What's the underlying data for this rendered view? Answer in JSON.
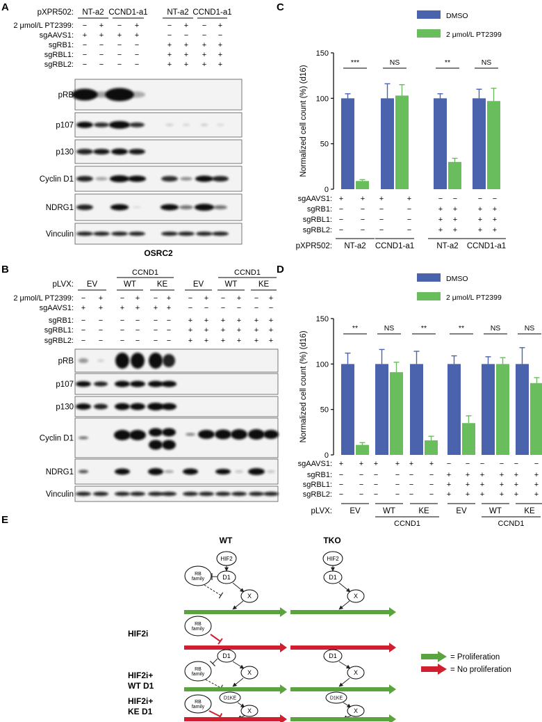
{
  "panels": {
    "A": "A",
    "B": "B",
    "C": "C",
    "D": "D",
    "E": "E"
  },
  "panel_a": {
    "header_label": "pXPR502:",
    "groups": [
      "NT-a2",
      "CCND1-a1",
      "NT-a2",
      "CCND1-a1"
    ],
    "rows": [
      {
        "label": "2 μmol/L PT2399:",
        "signs": [
          "−",
          "+",
          "−",
          "+",
          "−",
          "+",
          "−",
          "+"
        ]
      },
      {
        "label": "sgAAVS1:",
        "signs": [
          "+",
          "+",
          "+",
          "+",
          "−",
          "−",
          "−",
          "−"
        ]
      },
      {
        "label": "sgRB1:",
        "signs": [
          "−",
          "−",
          "−",
          "−",
          "+",
          "+",
          "+",
          "+"
        ]
      },
      {
        "label": "sgRBL1:",
        "signs": [
          "−",
          "−",
          "−",
          "−",
          "+",
          "+",
          "+",
          "+"
        ]
      },
      {
        "label": "sgRBL2:",
        "signs": [
          "−",
          "−",
          "−",
          "−",
          "+",
          "+",
          "+",
          "+"
        ]
      }
    ],
    "blots": [
      "pRB",
      "p107",
      "p130",
      "Cyclin D1",
      "NDRG1",
      "Vinculin"
    ],
    "cell_line": "OSRC2"
  },
  "panel_b": {
    "header_label": "pLVX:",
    "groups": [
      "EV",
      "WT",
      "KE",
      "EV",
      "WT",
      "KE"
    ],
    "super_groups": [
      "CCND1",
      "CCND1"
    ],
    "rows": [
      {
        "label": "2 μmol/L PT2399:",
        "signs": [
          "−",
          "+",
          "−",
          "+",
          "−",
          "+",
          "−",
          "+",
          "−",
          "+",
          "−",
          "+"
        ]
      },
      {
        "label": "sgAAVS1:",
        "signs": [
          "+",
          "+",
          "+",
          "+",
          "+",
          "+",
          "−",
          "−",
          "−",
          "−",
          "−",
          "−"
        ]
      },
      {
        "label": "sgRB1:",
        "signs": [
          "−",
          "−",
          "−",
          "−",
          "−",
          "−",
          "+",
          "+",
          "+",
          "+",
          "+",
          "+"
        ]
      },
      {
        "label": "sgRBL1:",
        "signs": [
          "−",
          "−",
          "−",
          "−",
          "−",
          "−",
          "+",
          "+",
          "+",
          "+",
          "+",
          "+"
        ]
      },
      {
        "label": "sgRBL2:",
        "signs": [
          "−",
          "−",
          "−",
          "−",
          "−",
          "−",
          "+",
          "+",
          "+",
          "+",
          "+",
          "+"
        ]
      }
    ],
    "blots": [
      "pRB",
      "p107",
      "p130",
      "Cyclin D1",
      "NDRG1",
      "Vinculin"
    ]
  },
  "chart_data": [
    {
      "type": "bar",
      "panel": "C",
      "ylabel": "Normalized cell count (%) (d16)",
      "ylim": [
        0,
        150
      ],
      "yticks": [
        0,
        50,
        100,
        150
      ],
      "legend": [
        "DMSO",
        "2 μmol/L PT2399"
      ],
      "colors": {
        "DMSO": "#4b63ad",
        "PT2399": "#69bd5c"
      },
      "groups": [
        "NT-a2",
        "CCND1-a1",
        "NT-a2",
        "CCND1-a1"
      ],
      "series": [
        {
          "name": "DMSO",
          "values": [
            100,
            100,
            100,
            100
          ],
          "errors": [
            5,
            16,
            5,
            10
          ]
        },
        {
          "name": "2 μmol/L PT2399",
          "values": [
            9,
            103,
            30,
            97
          ],
          "errors": [
            1.5,
            12,
            4,
            14
          ]
        }
      ],
      "significance": [
        "***",
        "NS",
        "**",
        "NS"
      ],
      "bottom_header": "pXPR502:",
      "rows": [
        {
          "label": "sgAAVS1:",
          "signs": [
            "+",
            "+",
            "+",
            "+",
            "−",
            "−",
            "−",
            "−"
          ]
        },
        {
          "label": "sgRB1:",
          "signs": [
            "−",
            "−",
            "−",
            "−",
            "+",
            "+",
            "+",
            "+"
          ]
        },
        {
          "label": "sgRBL1:",
          "signs": [
            "−",
            "−",
            "−",
            "−",
            "+",
            "+",
            "+",
            "+"
          ]
        },
        {
          "label": "sgRBL2:",
          "signs": [
            "−",
            "−",
            "−",
            "−",
            "+",
            "+",
            "+",
            "+"
          ]
        }
      ]
    },
    {
      "type": "bar",
      "panel": "D",
      "ylabel": "Normalized cell count (%) (d16)",
      "ylim": [
        0,
        150
      ],
      "yticks": [
        0,
        50,
        100,
        150
      ],
      "legend": [
        "DMSO",
        "2 μmol/L PT2399"
      ],
      "colors": {
        "DMSO": "#4b63ad",
        "PT2399": "#69bd5c"
      },
      "groups": [
        "EV",
        "WT",
        "KE",
        "EV",
        "WT",
        "KE"
      ],
      "super_groups": [
        "CCND1",
        "CCND1"
      ],
      "series": [
        {
          "name": "DMSO",
          "values": [
            100,
            100,
            100,
            100,
            100,
            100
          ],
          "errors": [
            12,
            16,
            14,
            9,
            8,
            18
          ]
        },
        {
          "name": "2 μmol/L PT2399",
          "values": [
            11,
            91,
            16,
            35,
            100,
            79
          ],
          "errors": [
            2.5,
            11,
            4.5,
            8,
            7,
            6
          ]
        }
      ],
      "significance": [
        "**",
        "NS",
        "**",
        "**",
        "NS",
        "NS"
      ],
      "bottom_header": "pLVX:",
      "rows": [
        {
          "label": "sgAAVS1:",
          "signs": [
            "+",
            "+",
            "+",
            "+",
            "+",
            "+",
            "−",
            "−",
            "−",
            "−",
            "−",
            "−"
          ]
        },
        {
          "label": "sgRB1:",
          "signs": [
            "−",
            "−",
            "−",
            "−",
            "−",
            "−",
            "+",
            "+",
            "+",
            "+",
            "+",
            "+"
          ]
        },
        {
          "label": "sgRBL1:",
          "signs": [
            "−",
            "−",
            "−",
            "−",
            "−",
            "−",
            "+",
            "+",
            "+",
            "+",
            "+",
            "+"
          ]
        },
        {
          "label": "sgRBL2:",
          "signs": [
            "−",
            "−",
            "−",
            "−",
            "−",
            "−",
            "+",
            "+",
            "+",
            "+",
            "+",
            "+"
          ]
        }
      ]
    }
  ],
  "panel_e": {
    "col_titles": [
      "WT",
      "TKO"
    ],
    "row_labels": [
      "",
      "HIF2i",
      "HIF2i+\nWT D1",
      "HIF2i+\nKE D1"
    ],
    "nodes": {
      "hif2": "HIF2",
      "d1": "D1",
      "x": "X",
      "rb": "RB\nfamily",
      "d1ke": "D1KE"
    },
    "legend": [
      {
        "label": "= Proliferation",
        "color": "#5aa33f"
      },
      {
        "label": "= No proliferation",
        "color": "#d01f2e"
      }
    ]
  }
}
